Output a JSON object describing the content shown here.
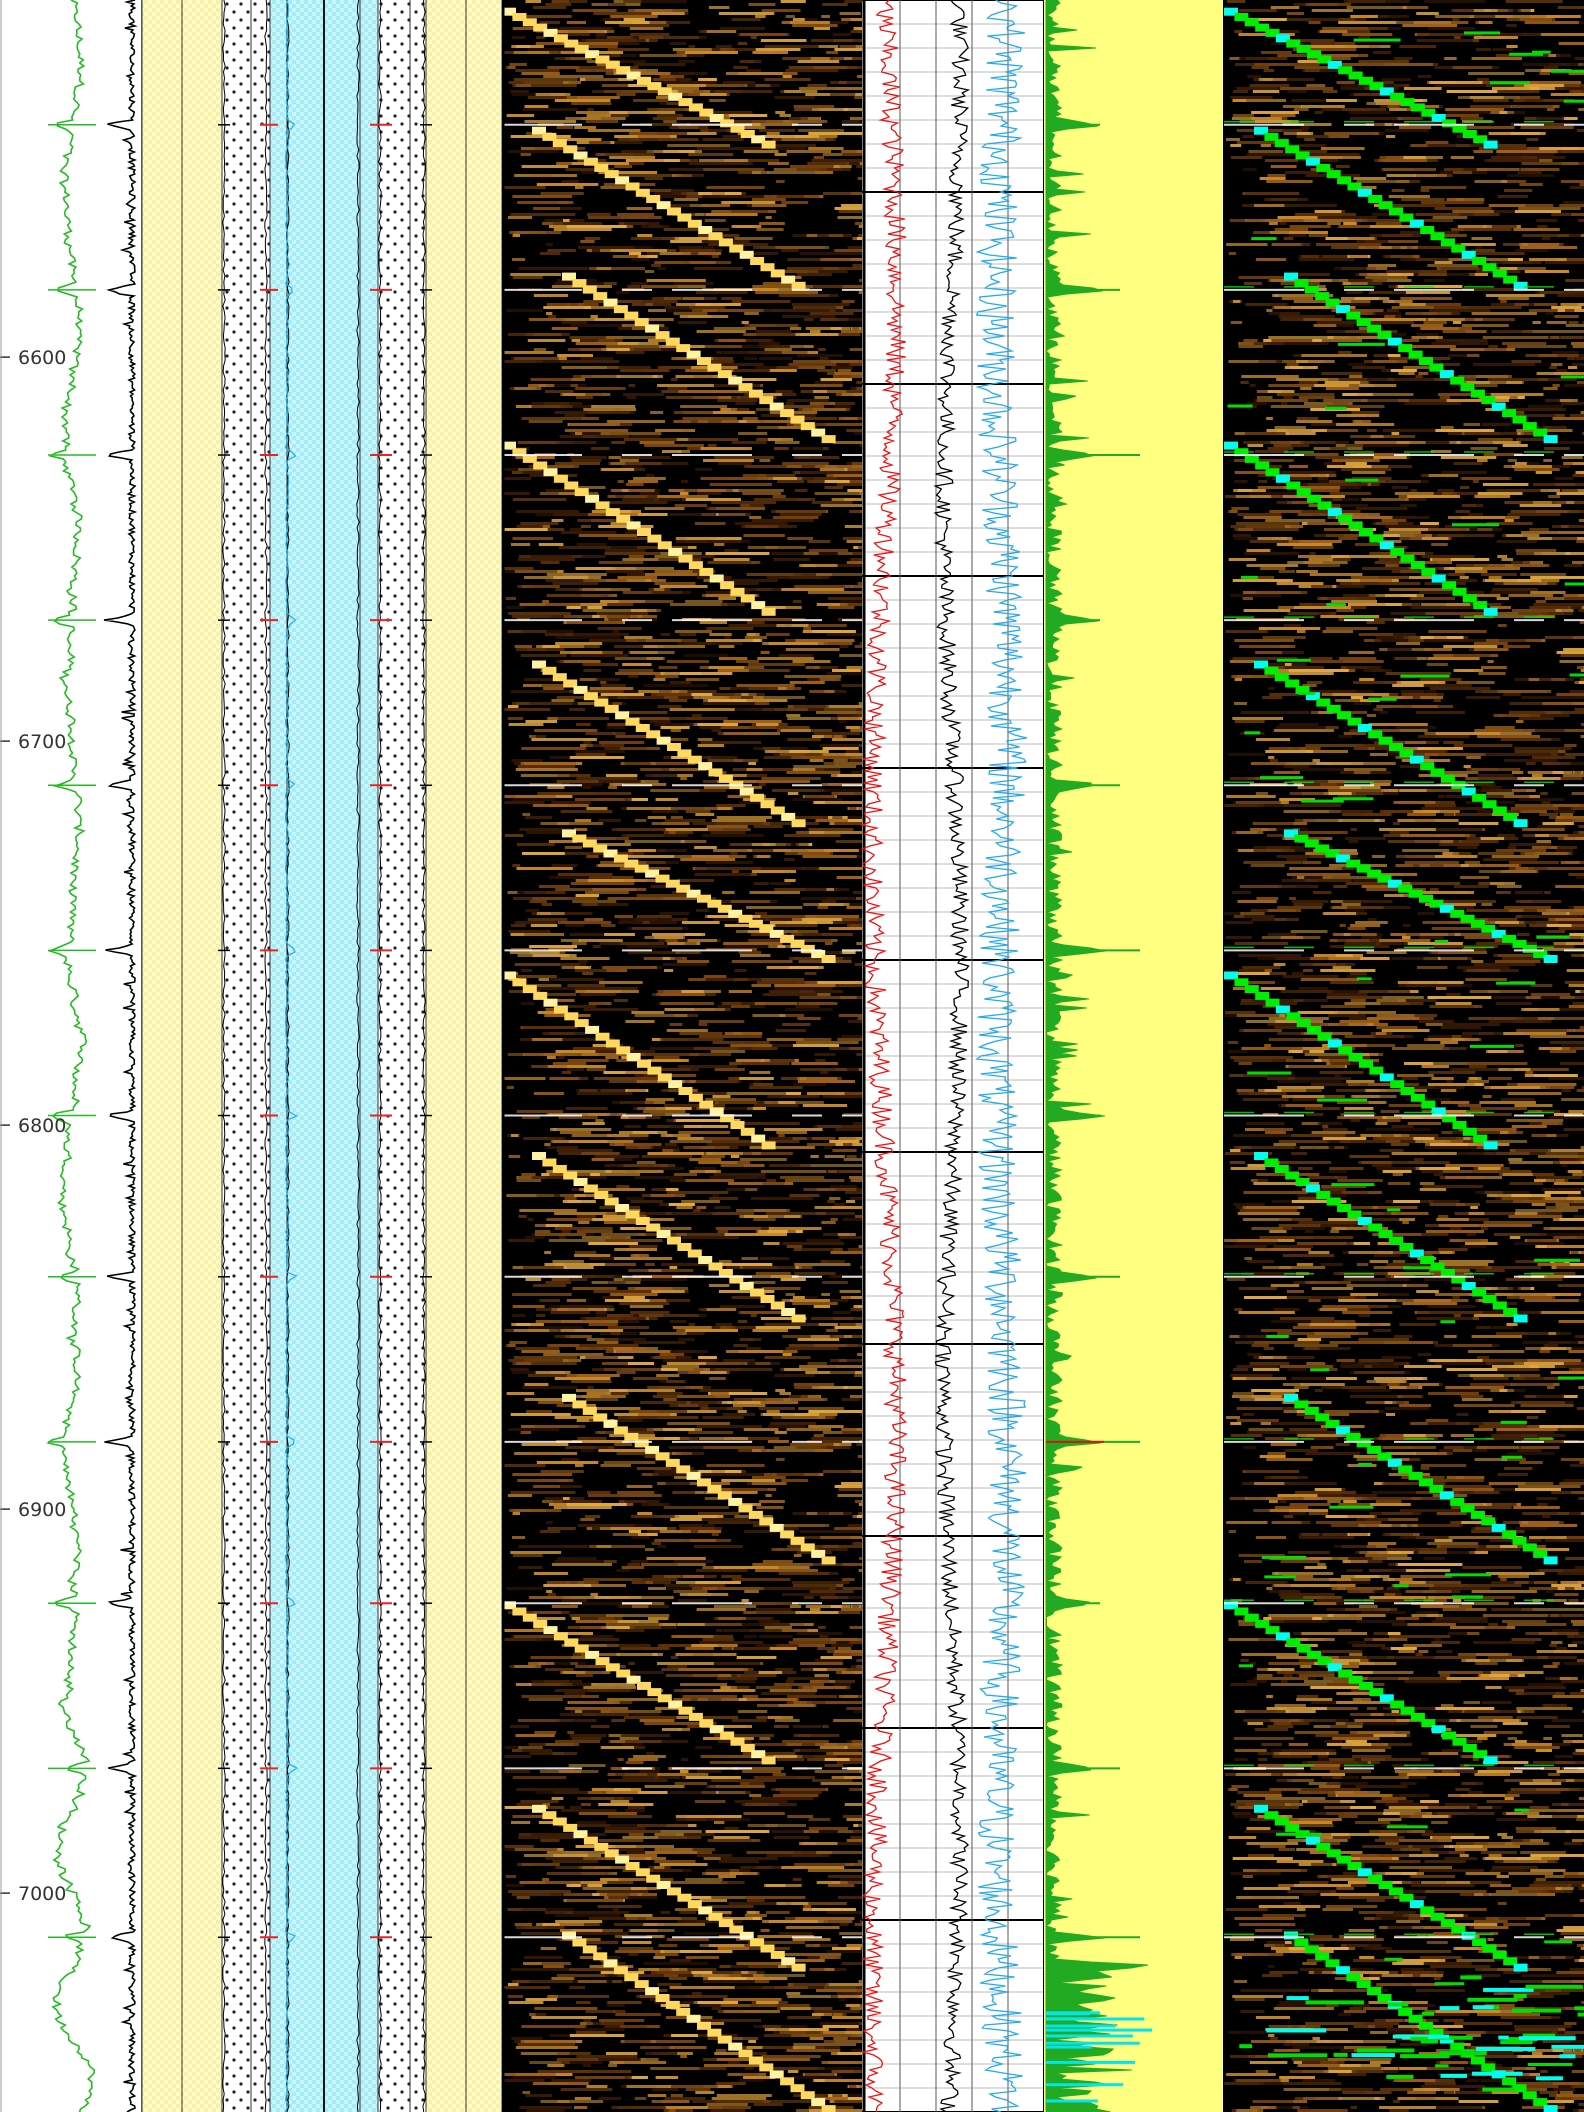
{
  "chart_data": {
    "type": "line",
    "depth_axis": {
      "tick_labels": [
        "6600",
        "6700",
        "6800",
        "6900",
        "7000"
      ],
      "ticks": [
        6600,
        6700,
        6800,
        6900,
        7000
      ],
      "range": [
        6507,
        7057
      ]
    },
    "anomaly_depths": [
      6539.5,
      6582.5,
      6625.5,
      6668.5,
      6711.5,
      6754.5,
      6797.5,
      6839.5,
      6882.5,
      6924.5,
      6967.5,
      7011.5
    ],
    "tracks": [
      {
        "track": "gamma-ray",
        "curve_color": "#22bb22",
        "scale": [
          0,
          150
        ]
      },
      {
        "track": "caliper-spike",
        "curve_color": "#000000"
      },
      {
        "track": "sand-lithology",
        "pattern_color": "#fffcc8"
      },
      {
        "track": "dotted-lithology-1",
        "pattern_color": "#ffffff"
      },
      {
        "track": "cyan-lithology",
        "pattern_color": "#bff4f8"
      },
      {
        "track": "dotted-lithology-2",
        "pattern_color": "#ffffff"
      },
      {
        "track": "sand-lithology-2",
        "pattern_color": "#fffcc8"
      },
      {
        "track": "heat-waterfall",
        "colormap": [
          "#000000",
          "#5a2e08",
          "#c88a2a",
          "#ffe060",
          "#ffffff"
        ]
      },
      {
        "track": "curve-red",
        "curve_color": "#ee1111"
      },
      {
        "track": "curve-black",
        "curve_color": "#000000"
      },
      {
        "track": "curve-blue",
        "curve_color": "#22aaee"
      },
      {
        "track": "green-fill",
        "fill_color": "#22aa22",
        "background": "#ffff80"
      },
      {
        "track": "heat-waterfall-overlay",
        "overlay_colors": [
          "#00ee00",
          "#00ffee"
        ]
      }
    ],
    "heat_diagonals": [
      {
        "start_depth": 6509,
        "end_depth": 6545
      },
      {
        "start_depth": 6540,
        "end_depth": 6582
      },
      {
        "start_depth": 6578,
        "end_depth": 6622
      },
      {
        "start_depth": 6622,
        "end_depth": 6667
      },
      {
        "start_depth": 6679,
        "end_depth": 6722
      },
      {
        "start_depth": 6723,
        "end_depth": 6757
      },
      {
        "start_depth": 6760,
        "end_depth": 6806
      },
      {
        "start_depth": 6807,
        "end_depth": 6851
      },
      {
        "start_depth": 6870,
        "end_depth": 6914
      },
      {
        "start_depth": 6924,
        "end_depth": 6966
      },
      {
        "start_depth": 6977,
        "end_depth": 7020
      },
      {
        "start_depth": 7010,
        "end_depth": 7057
      }
    ]
  }
}
